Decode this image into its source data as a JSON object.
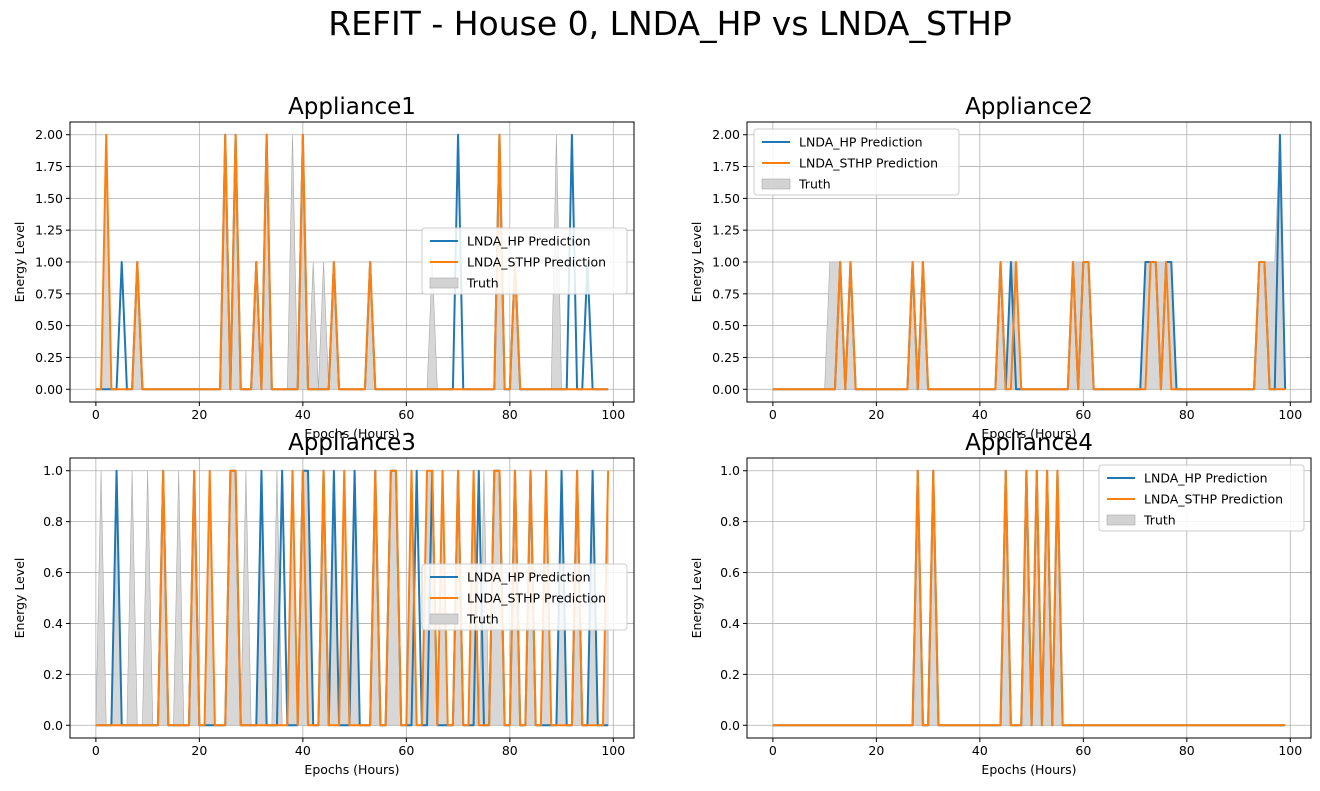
{
  "figure": {
    "suptitle": "REFIT - House 0, LNDA_HP vs LNDA_STHP"
  },
  "colors": {
    "hp": "#1f77b4",
    "sthp": "#ff7f0e",
    "truth_fill": "#d3d3d3",
    "truth_edge": "#a9a9a9",
    "grid": "#b0b0b0"
  },
  "chart_data": [
    {
      "type": "line",
      "title": "Appliance1",
      "xlabel": "Epochs (Hours)",
      "ylabel": "Energy Level",
      "xlim": [
        -5,
        104
      ],
      "ylim": [
        -0.1,
        2.1
      ],
      "xticks": [
        0,
        20,
        40,
        60,
        80,
        100
      ],
      "yticks": [
        0.0,
        0.25,
        0.5,
        0.75,
        1.0,
        1.25,
        1.5,
        1.75,
        2.0
      ],
      "ytick_labels": [
        "0.00",
        "0.25",
        "0.50",
        "0.75",
        "1.00",
        "1.25",
        "1.50",
        "1.75",
        "2.00"
      ],
      "grid": true,
      "legend_position": "center-right",
      "series": [
        {
          "name": "LNDA_HP Prediction",
          "kind": "line",
          "color": "#1f77b4",
          "points": [
            [
              5,
              1
            ],
            [
              8,
              1
            ],
            [
              25,
              2
            ],
            [
              27,
              2
            ],
            [
              31,
              1
            ],
            [
              33,
              2
            ],
            [
              40,
              2
            ],
            [
              46,
              1
            ],
            [
              53,
              1
            ],
            [
              70,
              2
            ],
            [
              78,
              2
            ],
            [
              81,
              1
            ],
            [
              92,
              2
            ],
            [
              95,
              1
            ]
          ]
        },
        {
          "name": "LNDA_STHP Prediction",
          "kind": "line",
          "color": "#ff7f0e",
          "points": [
            [
              2,
              2
            ],
            [
              8,
              1
            ],
            [
              25,
              2
            ],
            [
              27,
              2
            ],
            [
              31,
              1
            ],
            [
              33,
              2
            ],
            [
              40,
              2
            ],
            [
              46,
              1
            ],
            [
              53,
              1
            ],
            [
              78,
              2
            ],
            [
              81,
              1
            ]
          ]
        },
        {
          "name": "Truth",
          "kind": "area",
          "color": "#d3d3d3",
          "points": [
            [
              2,
              2
            ],
            [
              8,
              1
            ],
            [
              25,
              2
            ],
            [
              27,
              2
            ],
            [
              31,
              1
            ],
            [
              33,
              2
            ],
            [
              38,
              2
            ],
            [
              40,
              2
            ],
            [
              42,
              1
            ],
            [
              44,
              1
            ],
            [
              46,
              1
            ],
            [
              53,
              1
            ],
            [
              65,
              1
            ],
            [
              78,
              2
            ],
            [
              81,
              1
            ],
            [
              89,
              2
            ]
          ]
        }
      ]
    },
    {
      "type": "line",
      "title": "Appliance2",
      "xlabel": "Epochs (Hours)",
      "ylabel": "Energy Level",
      "xlim": [
        -5,
        104
      ],
      "ylim": [
        -0.1,
        2.1
      ],
      "xticks": [
        0,
        20,
        40,
        60,
        80,
        100
      ],
      "yticks": [
        0.0,
        0.25,
        0.5,
        0.75,
        1.0,
        1.25,
        1.5,
        1.75,
        2.0
      ],
      "ytick_labels": [
        "0.00",
        "0.25",
        "0.50",
        "0.75",
        "1.00",
        "1.25",
        "1.50",
        "1.75",
        "2.00"
      ],
      "grid": true,
      "legend_position": "upper-left",
      "series": [
        {
          "name": "LNDA_HP Prediction",
          "kind": "line",
          "color": "#1f77b4",
          "points": [
            [
              13,
              1
            ],
            [
              15,
              1
            ],
            [
              27,
              1
            ],
            [
              29,
              1
            ],
            [
              44,
              1
            ],
            [
              46,
              1
            ],
            [
              58,
              1
            ],
            [
              60,
              1
            ],
            [
              61,
              1
            ],
            [
              72,
              1
            ],
            [
              73,
              1
            ],
            [
              74,
              1
            ],
            [
              76,
              1
            ],
            [
              77,
              1
            ],
            [
              94,
              1
            ],
            [
              95,
              1
            ],
            [
              98,
              2
            ]
          ]
        },
        {
          "name": "LNDA_STHP Prediction",
          "kind": "line",
          "color": "#ff7f0e",
          "points": [
            [
              13,
              1
            ],
            [
              15,
              1
            ],
            [
              27,
              1
            ],
            [
              29,
              1
            ],
            [
              44,
              1
            ],
            [
              47,
              1
            ],
            [
              58,
              1
            ],
            [
              60,
              1
            ],
            [
              61,
              1
            ],
            [
              73,
              1
            ],
            [
              74,
              1
            ],
            [
              76,
              1
            ],
            [
              94,
              1
            ],
            [
              95,
              1
            ]
          ]
        },
        {
          "name": "Truth",
          "kind": "area",
          "color": "#d3d3d3",
          "points": [
            [
              11,
              1
            ],
            [
              12,
              1
            ],
            [
              13,
              1
            ],
            [
              15,
              1
            ],
            [
              27,
              1
            ],
            [
              29,
              1
            ],
            [
              44,
              1
            ],
            [
              46,
              1
            ],
            [
              47,
              1
            ],
            [
              58,
              1
            ],
            [
              59,
              1
            ],
            [
              60,
              1
            ],
            [
              61,
              1
            ],
            [
              72,
              1
            ],
            [
              73,
              1
            ],
            [
              74,
              1
            ],
            [
              75,
              1
            ],
            [
              76,
              1
            ],
            [
              77,
              1
            ],
            [
              94,
              1
            ],
            [
              95,
              1
            ],
            [
              96,
              1
            ],
            [
              97,
              1
            ],
            [
              98,
              2
            ]
          ]
        }
      ]
    },
    {
      "type": "line",
      "title": "Appliance3",
      "xlabel": "Epochs (Hours)",
      "ylabel": "Energy Level",
      "xlim": [
        -5,
        104
      ],
      "ylim": [
        -0.05,
        1.05
      ],
      "xticks": [
        0,
        20,
        40,
        60,
        80,
        100
      ],
      "yticks": [
        0.0,
        0.2,
        0.4,
        0.6,
        0.8,
        1.0
      ],
      "ytick_labels": [
        "0.0",
        "0.2",
        "0.4",
        "0.6",
        "0.8",
        "1.0"
      ],
      "grid": true,
      "legend_position": "center-right",
      "series": [
        {
          "name": "LNDA_HP Prediction",
          "kind": "line",
          "color": "#1f77b4",
          "points": [
            [
              4,
              1
            ],
            [
              13,
              1
            ],
            [
              19,
              1
            ],
            [
              26,
              1
            ],
            [
              27,
              1
            ],
            [
              32,
              1
            ],
            [
              36,
              1
            ],
            [
              40,
              1
            ],
            [
              41,
              1
            ],
            [
              44,
              1
            ],
            [
              46,
              1
            ],
            [
              50,
              1
            ],
            [
              54,
              1
            ],
            [
              57,
              1
            ],
            [
              58,
              1
            ],
            [
              62,
              1
            ],
            [
              65,
              1
            ],
            [
              70,
              1
            ],
            [
              74,
              1
            ],
            [
              77,
              1
            ],
            [
              78,
              1
            ],
            [
              81,
              1
            ],
            [
              84,
              1
            ],
            [
              90,
              1
            ],
            [
              93,
              1
            ],
            [
              96,
              1
            ]
          ]
        },
        {
          "name": "LNDA_STHP Prediction",
          "kind": "line",
          "color": "#ff7f0e",
          "points": [
            [
              13,
              1
            ],
            [
              19,
              1
            ],
            [
              22,
              1
            ],
            [
              26,
              1
            ],
            [
              27,
              1
            ],
            [
              38,
              1
            ],
            [
              40,
              1
            ],
            [
              44,
              1
            ],
            [
              48,
              1
            ],
            [
              54,
              1
            ],
            [
              57,
              1
            ],
            [
              58,
              1
            ],
            [
              61,
              1
            ],
            [
              64,
              1
            ],
            [
              65,
              1
            ],
            [
              67,
              1
            ],
            [
              70,
              1
            ],
            [
              73,
              1
            ],
            [
              77,
              1
            ],
            [
              78,
              1
            ],
            [
              81,
              1
            ],
            [
              84,
              1
            ],
            [
              87,
              1
            ],
            [
              93,
              1
            ],
            [
              99,
              1
            ]
          ]
        },
        {
          "name": "Truth",
          "kind": "area",
          "color": "#d3d3d3",
          "points": [
            [
              1,
              1
            ],
            [
              4,
              1
            ],
            [
              7,
              1
            ],
            [
              10,
              1
            ],
            [
              13,
              1
            ],
            [
              16,
              1
            ],
            [
              19,
              1
            ],
            [
              22,
              1
            ],
            [
              26,
              1
            ],
            [
              27,
              1
            ],
            [
              29,
              1
            ],
            [
              32,
              1
            ],
            [
              35,
              1
            ],
            [
              38,
              1
            ],
            [
              40,
              1
            ],
            [
              41,
              1
            ],
            [
              44,
              1
            ],
            [
              46,
              1
            ],
            [
              48,
              1
            ],
            [
              50,
              1
            ],
            [
              54,
              1
            ],
            [
              57,
              1
            ],
            [
              58,
              1
            ],
            [
              61,
              1
            ],
            [
              64,
              1
            ],
            [
              65,
              1
            ],
            [
              67,
              1
            ],
            [
              70,
              1
            ],
            [
              73,
              1
            ],
            [
              75,
              1
            ],
            [
              77,
              1
            ],
            [
              78,
              1
            ],
            [
              81,
              1
            ],
            [
              84,
              1
            ],
            [
              87,
              1
            ],
            [
              90,
              1
            ],
            [
              93,
              1
            ],
            [
              96,
              1
            ],
            [
              99,
              1
            ]
          ]
        }
      ]
    },
    {
      "type": "line",
      "title": "Appliance4",
      "xlabel": "Epochs (Hours)",
      "ylabel": "Energy Level",
      "xlim": [
        -5,
        104
      ],
      "ylim": [
        -0.05,
        1.05
      ],
      "xticks": [
        0,
        20,
        40,
        60,
        80,
        100
      ],
      "yticks": [
        0.0,
        0.2,
        0.4,
        0.6,
        0.8,
        1.0
      ],
      "ytick_labels": [
        "0.0",
        "0.2",
        "0.4",
        "0.6",
        "0.8",
        "1.0"
      ],
      "grid": true,
      "legend_position": "upper-right",
      "series": [
        {
          "name": "LNDA_HP Prediction",
          "kind": "line",
          "color": "#1f77b4",
          "points": [
            [
              28,
              1
            ],
            [
              31,
              1
            ],
            [
              45,
              1
            ],
            [
              49,
              1
            ],
            [
              51,
              1
            ],
            [
              53,
              1
            ],
            [
              55,
              1
            ]
          ]
        },
        {
          "name": "LNDA_STHP Prediction",
          "kind": "line",
          "color": "#ff7f0e",
          "points": [
            [
              28,
              1
            ],
            [
              31,
              1
            ],
            [
              45,
              1
            ],
            [
              49,
              1
            ],
            [
              51,
              1
            ],
            [
              53,
              1
            ],
            [
              55,
              1
            ]
          ]
        },
        {
          "name": "Truth",
          "kind": "area",
          "color": "#d3d3d3",
          "points": [
            [
              28,
              1
            ],
            [
              31,
              1
            ],
            [
              45,
              1
            ],
            [
              49,
              1
            ],
            [
              51,
              1
            ],
            [
              53,
              1
            ],
            [
              55,
              1
            ]
          ]
        }
      ]
    }
  ]
}
